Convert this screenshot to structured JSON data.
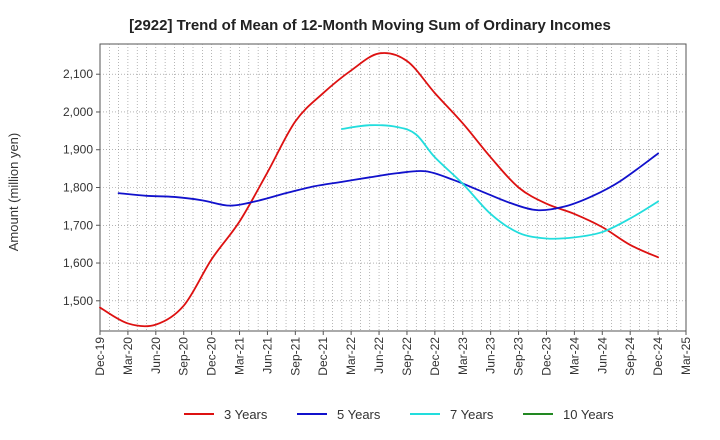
{
  "chart_data": {
    "type": "line",
    "title": "[2922]  Trend of Mean of 12-Month Moving Sum of Ordinary Incomes",
    "xlabel": "",
    "ylabel": "Amount (million yen)",
    "ylim": [
      1420,
      2180
    ],
    "yticks": [
      1500,
      1600,
      1700,
      1800,
      1900,
      2000,
      2100
    ],
    "ytick_labels": [
      "1,500",
      "1,600",
      "1,700",
      "1,800",
      "1,900",
      "2,000",
      "2,100"
    ],
    "x_range_months": [
      0,
      63
    ],
    "xtick_labels": [
      "Dec-19",
      "Mar-20",
      "Jun-20",
      "Sep-20",
      "Dec-20",
      "Mar-21",
      "Jun-21",
      "Sep-21",
      "Dec-21",
      "Mar-22",
      "Jun-22",
      "Sep-22",
      "Dec-22",
      "Mar-23",
      "Jun-23",
      "Sep-23",
      "Dec-23",
      "Mar-24",
      "Jun-24",
      "Sep-24",
      "Dec-24",
      "Mar-25"
    ],
    "grid": true,
    "legend_position": "bottom",
    "series": [
      {
        "name": "3 Years",
        "color": "#dd1111",
        "x": [
          0,
          3,
          6,
          9,
          12,
          15,
          18,
          21,
          24,
          27,
          30,
          33,
          36,
          39,
          42,
          45,
          48,
          51,
          54,
          57,
          60
        ],
        "values": [
          1482,
          1440,
          1437,
          1487,
          1610,
          1710,
          1840,
          1975,
          2050,
          2110,
          2155,
          2135,
          2050,
          1970,
          1880,
          1800,
          1757,
          1730,
          1695,
          1648,
          1615
        ]
      },
      {
        "name": "5 Years",
        "color": "#1111cc",
        "x": [
          2,
          5,
          8,
          11,
          14,
          17,
          20,
          23,
          26,
          29,
          32,
          35,
          38,
          41,
          44,
          47,
          50,
          53,
          56,
          60
        ],
        "values": [
          1785,
          1778,
          1775,
          1766,
          1752,
          1765,
          1785,
          1803,
          1815,
          1827,
          1838,
          1843,
          1820,
          1790,
          1760,
          1740,
          1750,
          1778,
          1818,
          1890
        ]
      },
      {
        "name": "7 Years",
        "color": "#22dddd",
        "x": [
          26,
          29,
          32,
          34,
          36,
          39,
          42,
          45,
          48,
          51,
          54,
          57,
          60
        ],
        "values": [
          1955,
          1965,
          1960,
          1940,
          1880,
          1810,
          1730,
          1680,
          1665,
          1668,
          1682,
          1718,
          1763
        ]
      },
      {
        "name": "10 Years",
        "color": "#228822",
        "x": [],
        "values": []
      }
    ]
  }
}
